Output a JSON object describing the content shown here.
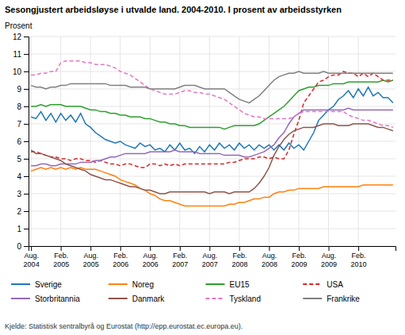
{
  "chart_data": {
    "type": "line",
    "title": "Sesongjustert arbeidsløyse i utvalde land. 2004-2010. I prosent av arbeidsstyrken",
    "ylabel": "Prosent",
    "annotations": [
      "Kjelde: Statistisk sentralbyrå og Eurostat (http://epp.eurostat.ec.europa.eu)."
    ],
    "categories": [
      "Aug.\n2004",
      null,
      null,
      null,
      null,
      null,
      "Feb.\n2005",
      null,
      null,
      null,
      null,
      null,
      "Aug.\n2005",
      null,
      null,
      null,
      null,
      null,
      "Feb.\n2006",
      null,
      null,
      null,
      null,
      null,
      "Aug.\n2006",
      null,
      null,
      null,
      null,
      null,
      "Feb.\n2007",
      null,
      null,
      null,
      null,
      null,
      "Aug.\n2007",
      null,
      null,
      null,
      null,
      null,
      "Feb.\n2008",
      null,
      null,
      null,
      null,
      null,
      "Aug.\n2008",
      null,
      null,
      null,
      null,
      null,
      "Feb.\n2009",
      null,
      null,
      null,
      null,
      null,
      "Aug.\n2009",
      null,
      null,
      null,
      null,
      null,
      "Feb.\n2010",
      null,
      null,
      null,
      null,
      null,
      null,
      null
    ],
    "ylim": [
      0,
      12
    ],
    "yticks": [
      0,
      1,
      2,
      3,
      4,
      5,
      6,
      7,
      8,
      9,
      10,
      11,
      12
    ],
    "grid": true,
    "series": [
      {
        "name": "Sverige",
        "line_style": "solid",
        "values": [
          7.4,
          7.3,
          7.7,
          7.2,
          7.6,
          7.1,
          7.6,
          7.2,
          7.5,
          7.1,
          7.6,
          7.0,
          6.8,
          6.5,
          6.3,
          6.1,
          6.0,
          5.9,
          6.0,
          5.8,
          5.7,
          5.6,
          5.9,
          5.7,
          5.8,
          5.5,
          5.6,
          5.4,
          5.8,
          5.5,
          5.9,
          5.5,
          5.6,
          5.3,
          5.7,
          5.4,
          5.8,
          5.5,
          5.9,
          5.6,
          5.8,
          5.5,
          5.9,
          5.6,
          5.8,
          5.5,
          5.8,
          5.6,
          5.8,
          5.5,
          5.8,
          5.5,
          5.9,
          5.6,
          5.8,
          5.5,
          6.0,
          6.5,
          7.2,
          7.5,
          7.8,
          8.0,
          8.4,
          8.6,
          8.9,
          8.5,
          9.0,
          8.6,
          9.1,
          8.6,
          8.8,
          8.5,
          8.5,
          8.2
        ]
      },
      {
        "name": "Noreg",
        "line_style": "solid",
        "values": [
          4.3,
          4.4,
          4.5,
          4.4,
          4.5,
          4.4,
          4.5,
          4.4,
          4.5,
          4.4,
          4.5,
          4.4,
          4.4,
          4.4,
          4.3,
          4.2,
          4.1,
          4.0,
          3.8,
          3.7,
          3.6,
          3.5,
          3.3,
          3.2,
          3.0,
          2.9,
          2.7,
          2.6,
          2.6,
          2.5,
          2.4,
          2.3,
          2.3,
          2.3,
          2.3,
          2.3,
          2.3,
          2.3,
          2.3,
          2.3,
          2.4,
          2.4,
          2.5,
          2.5,
          2.6,
          2.7,
          2.7,
          2.8,
          2.8,
          3.0,
          3.1,
          3.1,
          3.2,
          3.2,
          3.3,
          3.3,
          3.3,
          3.3,
          3.3,
          3.4,
          3.4,
          3.4,
          3.4,
          3.4,
          3.4,
          3.4,
          3.4,
          3.5,
          3.5,
          3.5,
          3.5,
          3.5,
          3.5,
          3.5
        ]
      },
      {
        "name": "EU15",
        "line_style": "solid",
        "values": [
          8.0,
          8.0,
          8.1,
          8.0,
          8.1,
          8.1,
          8.1,
          8.0,
          8.0,
          8.0,
          8.0,
          7.9,
          7.8,
          7.8,
          7.7,
          7.7,
          7.6,
          7.6,
          7.5,
          7.5,
          7.4,
          7.4,
          7.4,
          7.3,
          7.3,
          7.2,
          7.1,
          7.1,
          7.0,
          7.0,
          6.9,
          6.9,
          6.8,
          6.8,
          6.8,
          6.8,
          6.8,
          6.8,
          6.8,
          6.7,
          6.8,
          6.9,
          6.9,
          6.9,
          6.9,
          6.9,
          7.0,
          7.2,
          7.4,
          7.6,
          7.8,
          8.0,
          8.3,
          8.6,
          8.9,
          9.0,
          9.1,
          9.1,
          9.2,
          9.2,
          9.2,
          9.3,
          9.3,
          9.3,
          9.4,
          9.4,
          9.4,
          9.4,
          9.4,
          9.4,
          9.4,
          9.5,
          9.4,
          9.5
        ]
      },
      {
        "name": "USA",
        "line_style": "dashed",
        "values": [
          5.4,
          5.4,
          5.3,
          5.2,
          5.1,
          5.1,
          5.0,
          5.0,
          4.9,
          5.0,
          5.0,
          4.9,
          4.9,
          4.8,
          4.9,
          4.8,
          4.7,
          4.7,
          4.6,
          4.7,
          4.7,
          4.6,
          4.5,
          4.5,
          4.7,
          4.7,
          4.6,
          4.7,
          4.6,
          4.7,
          4.6,
          4.7,
          4.7,
          4.7,
          4.7,
          4.7,
          4.7,
          4.7,
          4.7,
          4.7,
          4.8,
          4.8,
          4.9,
          5.0,
          5.0,
          5.0,
          5.1,
          5.1,
          5.0,
          5.1,
          5.0,
          5.0,
          5.5,
          6.4,
          7.2,
          8.2,
          8.6,
          9.0,
          9.4,
          9.5,
          9.7,
          9.8,
          9.8,
          10.0,
          9.9,
          9.9,
          9.7,
          9.9,
          9.7,
          9.9,
          9.7,
          9.5,
          9.5,
          9.5
        ]
      },
      {
        "name": "Storbritannia",
        "line_style": "solid",
        "values": [
          4.6,
          4.6,
          4.7,
          4.7,
          4.6,
          4.6,
          4.7,
          4.7,
          4.7,
          4.7,
          4.8,
          4.8,
          4.8,
          4.9,
          4.9,
          5.0,
          5.1,
          5.1,
          5.2,
          5.3,
          5.3,
          5.3,
          5.3,
          5.3,
          5.4,
          5.4,
          5.4,
          5.4,
          5.4,
          5.5,
          5.4,
          5.4,
          5.4,
          5.4,
          5.3,
          5.3,
          5.3,
          5.3,
          5.3,
          5.2,
          5.2,
          5.2,
          5.2,
          5.1,
          5.1,
          5.2,
          5.3,
          5.4,
          5.6,
          5.8,
          6.2,
          6.5,
          7.0,
          7.4,
          7.6,
          7.8,
          7.8,
          7.8,
          7.8,
          7.8,
          7.8,
          7.8,
          7.8,
          7.8,
          7.9,
          7.8,
          7.8,
          7.8,
          7.8,
          7.8,
          7.8,
          7.8,
          7.8,
          7.8
        ]
      },
      {
        "name": "Danmark",
        "line_style": "solid",
        "values": [
          5.5,
          5.3,
          5.3,
          5.2,
          5.1,
          5.0,
          4.9,
          4.7,
          4.6,
          4.5,
          4.4,
          4.3,
          4.1,
          4.0,
          3.9,
          3.8,
          3.8,
          3.7,
          3.6,
          3.5,
          3.4,
          3.4,
          3.3,
          3.2,
          3.2,
          3.1,
          3.0,
          3.0,
          3.1,
          3.1,
          3.1,
          3.1,
          3.1,
          3.1,
          3.1,
          3.1,
          3.0,
          3.1,
          3.1,
          3.1,
          3.0,
          3.1,
          3.1,
          3.1,
          3.1,
          3.3,
          3.6,
          4.0,
          4.5,
          5.2,
          5.7,
          6.1,
          6.4,
          6.6,
          6.7,
          6.8,
          6.8,
          6.8,
          6.9,
          7.0,
          7.0,
          7.0,
          6.9,
          6.9,
          6.9,
          7.0,
          7.0,
          7.0,
          7.0,
          6.9,
          6.8,
          6.8,
          6.7,
          6.6
        ]
      },
      {
        "name": "Tyskland",
        "line_style": "dashed",
        "values": [
          9.8,
          9.8,
          9.9,
          9.9,
          10.0,
          10.0,
          10.5,
          10.6,
          10.6,
          10.6,
          10.6,
          10.5,
          10.5,
          10.4,
          10.4,
          10.4,
          10.3,
          10.2,
          10.0,
          9.9,
          9.8,
          9.6,
          9.4,
          9.2,
          9.0,
          8.9,
          8.8,
          8.7,
          8.7,
          8.7,
          8.8,
          8.9,
          8.9,
          8.8,
          8.8,
          8.7,
          8.7,
          8.6,
          8.5,
          8.4,
          8.2,
          8.0,
          7.8,
          7.6,
          7.5,
          7.4,
          7.4,
          7.3,
          7.3,
          7.3,
          7.3,
          7.3,
          7.3,
          7.4,
          7.6,
          7.7,
          7.7,
          7.7,
          7.7,
          7.7,
          7.7,
          7.7,
          7.7,
          7.7,
          7.5,
          7.4,
          7.3,
          7.2,
          7.2,
          7.1,
          7.0,
          6.9,
          6.9,
          6.8
        ]
      },
      {
        "name": "Frankrike",
        "line_style": "solid",
        "values": [
          9.2,
          9.1,
          9.1,
          9.0,
          9.1,
          9.1,
          9.2,
          9.2,
          9.3,
          9.3,
          9.3,
          9.3,
          9.3,
          9.3,
          9.3,
          9.3,
          9.2,
          9.2,
          9.2,
          9.2,
          9.1,
          9.1,
          9.1,
          9.1,
          9.0,
          9.0,
          9.0,
          9.0,
          9.0,
          9.0,
          9.1,
          9.2,
          9.2,
          9.2,
          9.1,
          9.0,
          9.0,
          9.0,
          9.0,
          9.0,
          8.8,
          8.6,
          8.4,
          8.3,
          8.2,
          8.4,
          8.6,
          8.9,
          9.2,
          9.5,
          9.7,
          9.8,
          9.9,
          9.9,
          10.0,
          9.9,
          9.9,
          9.9,
          9.9,
          10.0,
          9.9,
          9.9,
          9.9,
          9.9,
          9.9,
          9.9,
          9.9,
          9.9,
          9.9,
          9.9,
          9.9,
          9.9,
          9.9,
          9.9
        ]
      }
    ]
  }
}
